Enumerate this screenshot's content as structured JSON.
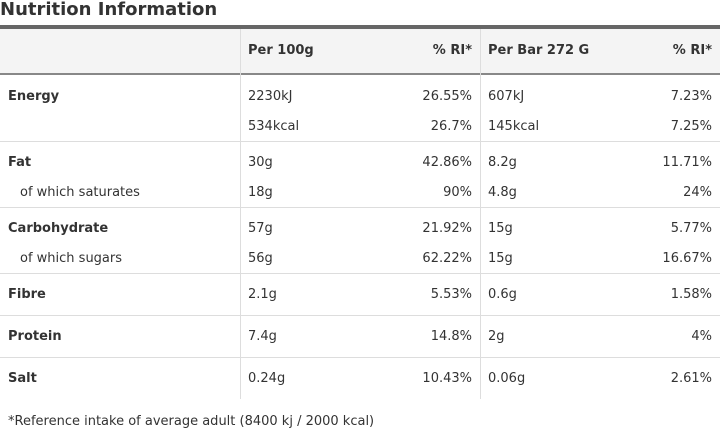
{
  "header": {
    "title": "Nutrition Information"
  },
  "table": {
    "columns": [
      "Per 100g",
      "% RI*",
      "Per Bar 272 G",
      "% RI*"
    ],
    "groups": [
      {
        "lines": [
          {
            "label": "Energy",
            "cells": [
              "2230kJ",
              "26.55%",
              "607kJ",
              "7.23%"
            ]
          },
          {
            "cells": [
              "534kcal",
              "26.7%",
              "145kcal",
              "7.25%"
            ]
          }
        ]
      },
      {
        "lines": [
          {
            "label": "Fat",
            "cells": [
              "30g",
              "42.86%",
              "8.2g",
              "11.71%"
            ]
          },
          {
            "label": "of which saturates",
            "cells": [
              "18g",
              "90%",
              "4.8g",
              "24%"
            ]
          }
        ]
      },
      {
        "lines": [
          {
            "label": "Carbohydrate",
            "cells": [
              "57g",
              "21.92%",
              "15g",
              "5.77%"
            ]
          },
          {
            "label": "of which sugars",
            "cells": [
              "56g",
              "62.22%",
              "15g",
              "16.67%"
            ]
          }
        ]
      },
      {
        "lines": [
          {
            "label": "Fibre",
            "cells": [
              "2.1g",
              "5.53%",
              "0.6g",
              "1.58%"
            ]
          }
        ]
      },
      {
        "lines": [
          {
            "label": "Protein",
            "cells": [
              "7.4g",
              "14.8%",
              "2g",
              "4%"
            ]
          }
        ]
      },
      {
        "lines": [
          {
            "label": "Salt",
            "cells": [
              "0.24g",
              "10.43%",
              "0.06g",
              "2.61%"
            ]
          }
        ]
      }
    ]
  },
  "footnote": "*Reference intake of average adult (8400 kj / 2000 kcal)"
}
